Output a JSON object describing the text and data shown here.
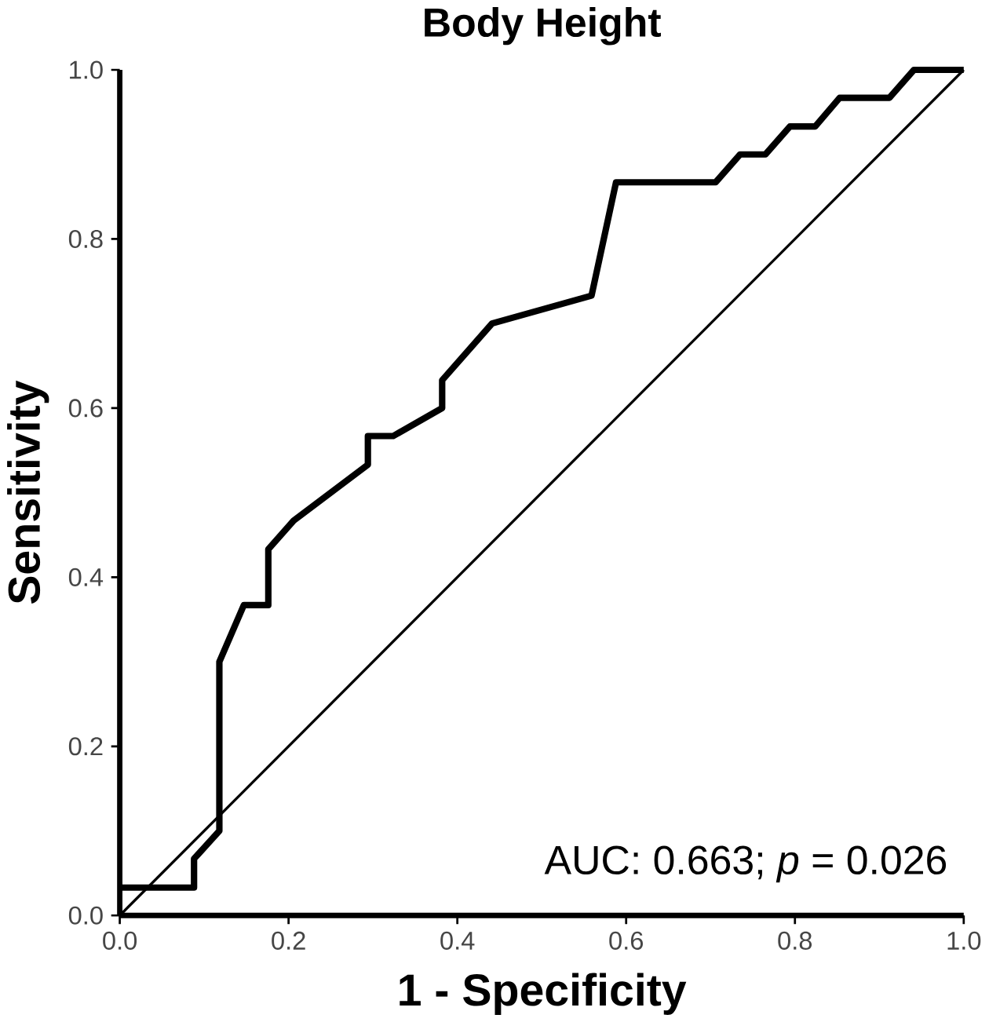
{
  "chart_data": {
    "type": "line",
    "title": "Body Height",
    "xlabel": "1 - Specificity",
    "ylabel": "Sensitivity",
    "xlim": [
      0,
      1
    ],
    "ylim": [
      0,
      1
    ],
    "xticks": [
      {
        "value": 0,
        "label": "0.0"
      },
      0.2,
      0.4,
      0.6,
      0.8,
      {
        "value": 1,
        "label": "1.0"
      }
    ],
    "yticks": [
      {
        "value": 0,
        "label": "0.0"
      },
      0.2,
      0.4,
      0.6,
      0.8,
      {
        "value": 1,
        "label": "1.0"
      }
    ],
    "series": [
      {
        "color": "#000000",
        "x": [
          0,
          0.088,
          0.088,
          0.118,
          0.118,
          0.147,
          0.176,
          0.176,
          0.206,
          0.294,
          0.294,
          0.324,
          0.382,
          0.382,
          0.441,
          0.559,
          0.588,
          0.706,
          0.735,
          0.765,
          0.794,
          0.824,
          0.853,
          0.912,
          0.941,
          1
        ],
        "values": [
          0.033,
          0.033,
          0.067,
          0.1,
          0.3,
          0.367,
          0.367,
          0.433,
          0.467,
          0.533,
          0.567,
          0.567,
          0.6,
          0.633,
          0.7,
          0.733,
          0.867,
          0.867,
          0.9,
          0.9,
          0.933,
          0.933,
          0.967,
          0.967,
          1,
          1
        ]
      },
      {
        "color": "#000000",
        "x": [
          0,
          1
        ],
        "values": [
          0,
          1
        ]
      }
    ],
    "annotations": [
      {
        "text": "AUC: 0.663; *p* = 0.026"
      }
    ],
    "grid": false,
    "marker": "none",
    "line_style": "solid"
  }
}
